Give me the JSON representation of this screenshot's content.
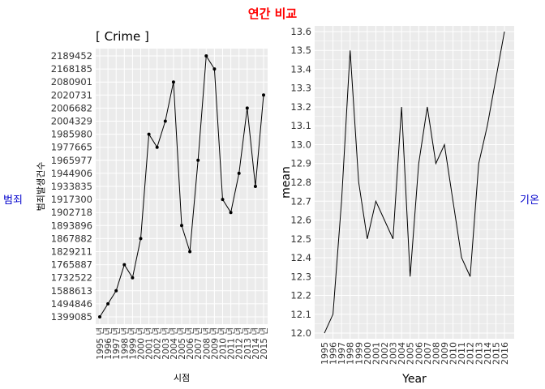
{
  "main_title": "연간 비교",
  "left_side_label": "범죄",
  "right_side_label": "기온",
  "colors": {
    "title": "#ff0000",
    "side": "#0000cc",
    "panel": "#ebebeb",
    "grid": "#ffffff",
    "line": "#000000"
  },
  "chart_data": [
    {
      "type": "line",
      "title": "[ Crime ]",
      "xlabel": "시점",
      "ylabel": "범죄발생건수",
      "grid": true,
      "y_axis": "categorical",
      "x": [
        "1995 년",
        "1996 년",
        "1997 년",
        "1998 년",
        "1999 년",
        "2000 년",
        "2001 년",
        "2002 년",
        "2003 년",
        "2004 년",
        "2005 년",
        "2006 년",
        "2007 년",
        "2008 년",
        "2009 년",
        "2010 년",
        "2011 년",
        "2012 년",
        "2013 년",
        "2014 년",
        "2015 년"
      ],
      "y_categories": [
        "1399085",
        "1494846",
        "1588613",
        "1732522",
        "1765887",
        "1829211",
        "1867882",
        "1893896",
        "1902718",
        "1917300",
        "1933835",
        "1944906",
        "1965977",
        "1977665",
        "1985980",
        "2004329",
        "2006682",
        "2020731",
        "2080901",
        "2168185",
        "2189452"
      ],
      "values": [
        "1399085",
        "1494846",
        "1588613",
        "1765887",
        "1732522",
        "1867882",
        "1985980",
        "1977665",
        "2004329",
        "2080901",
        "1893896",
        "1829211",
        "1965977",
        "2189452",
        "2168185",
        "1917300",
        "1902718",
        "1944906",
        "2006682",
        "1933835",
        "2020731"
      ]
    },
    {
      "type": "line",
      "title": "",
      "xlabel": "Year",
      "ylabel": "mean",
      "grid": true,
      "x": [
        1995,
        1996,
        1997,
        1998,
        1999,
        2000,
        2001,
        2002,
        2003,
        2004,
        2005,
        2006,
        2007,
        2008,
        2009,
        2010,
        2011,
        2012,
        2013,
        2014,
        2015,
        2016
      ],
      "yticks": [
        12.0,
        12.1,
        12.2,
        12.3,
        12.4,
        12.5,
        12.6,
        12.7,
        12.8,
        12.9,
        13.0,
        13.1,
        13.2,
        13.3,
        13.4,
        13.5,
        13.6
      ],
      "ytick_labels": [
        "12.0",
        "12.1",
        "12.2",
        "12.3",
        "12.4",
        "12.5",
        "12.6",
        "12.7",
        "12.8",
        "12.9",
        "13.0",
        "13.1",
        "13.2",
        "13.3",
        "13.4",
        "13.5",
        "13.6"
      ],
      "ylim": [
        11.97,
        13.63
      ],
      "values": [
        12.0,
        12.1,
        12.7,
        13.5,
        12.8,
        12.5,
        12.7,
        12.6,
        12.5,
        13.2,
        12.3,
        12.9,
        13.2,
        12.9,
        13.0,
        12.7,
        12.4,
        12.3,
        12.9,
        13.1,
        13.35,
        13.6
      ]
    }
  ]
}
